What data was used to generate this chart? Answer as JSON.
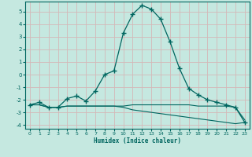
{
  "xlabel": "Humidex (Indice chaleur)",
  "background_color": "#c5e8e0",
  "grid_color": "#d4b8b8",
  "line_color": "#006660",
  "xlim": [
    -0.5,
    23.5
  ],
  "ylim": [
    -4.3,
    5.8
  ],
  "yticks": [
    -4,
    -3,
    -2,
    -1,
    0,
    1,
    2,
    3,
    4,
    5
  ],
  "xticks": [
    0,
    1,
    2,
    3,
    4,
    5,
    6,
    7,
    8,
    9,
    10,
    11,
    12,
    13,
    14,
    15,
    16,
    17,
    18,
    19,
    20,
    21,
    22,
    23
  ],
  "curve1_x": [
    0,
    1,
    2,
    3,
    4,
    5,
    6,
    7,
    8,
    9,
    10,
    11,
    12,
    13,
    14,
    15,
    16,
    17,
    18,
    19,
    20,
    21,
    22,
    23
  ],
  "curve1_y": [
    -2.4,
    -2.2,
    -2.6,
    -2.6,
    -1.9,
    -1.7,
    -2.1,
    -1.3,
    0.0,
    0.3,
    3.3,
    4.8,
    5.5,
    5.2,
    4.4,
    2.6,
    0.5,
    -1.1,
    -1.6,
    -2.0,
    -2.2,
    -2.4,
    -2.6,
    -3.8
  ],
  "curve2_x": [
    0,
    1,
    2,
    3,
    4,
    5,
    6,
    7,
    8,
    9,
    10,
    11,
    12,
    13,
    14,
    15,
    16,
    17,
    18,
    19,
    20,
    21,
    22,
    23
  ],
  "curve2_y": [
    -2.4,
    -2.4,
    -2.6,
    -2.6,
    -2.5,
    -2.5,
    -2.5,
    -2.5,
    -2.5,
    -2.5,
    -2.5,
    -2.4,
    -2.4,
    -2.4,
    -2.4,
    -2.4,
    -2.4,
    -2.4,
    -2.5,
    -2.5,
    -2.5,
    -2.5,
    -2.6,
    -3.6
  ],
  "curve3_x": [
    0,
    1,
    2,
    3,
    4,
    5,
    6,
    7,
    8,
    9,
    10,
    11,
    12,
    13,
    14,
    15,
    16,
    17,
    18,
    19,
    20,
    21,
    22,
    23
  ],
  "curve3_y": [
    -2.4,
    -2.4,
    -2.6,
    -2.6,
    -2.5,
    -2.5,
    -2.5,
    -2.5,
    -2.5,
    -2.5,
    -2.6,
    -2.8,
    -2.9,
    -3.0,
    -3.1,
    -3.2,
    -3.3,
    -3.4,
    -3.5,
    -3.6,
    -3.7,
    -3.8,
    -3.9,
    -3.8
  ]
}
